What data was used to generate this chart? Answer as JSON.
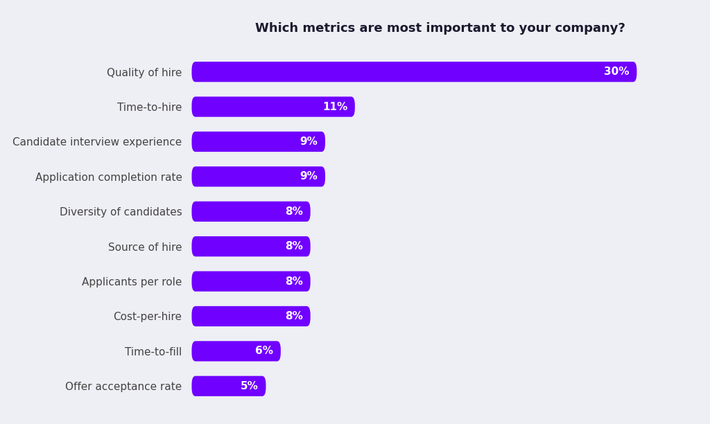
{
  "title": "Which metrics are most important to your company?",
  "categories": [
    "Offer acceptance rate",
    "Time-to-fill",
    "Cost-per-hire",
    "Applicants per role",
    "Source of hire",
    "Diversity of candidates",
    "Application completion rate",
    "Candidate interview experience",
    "Time-to-hire",
    "Quality of hire"
  ],
  "values": [
    5,
    6,
    8,
    8,
    8,
    8,
    9,
    9,
    11,
    30
  ],
  "labels": [
    "5%",
    "6%",
    "8%",
    "8%",
    "8%",
    "8%",
    "9%",
    "9%",
    "11%",
    "30%"
  ],
  "bar_color": "#7000FF",
  "label_color": "#FFFFFF",
  "title_color": "#1a1a2e",
  "background_color": "#eeeef5",
  "bar_height": 0.58,
  "title_fontsize": 13,
  "label_fontsize": 11,
  "category_fontsize": 11,
  "xlim_max": 33.5
}
